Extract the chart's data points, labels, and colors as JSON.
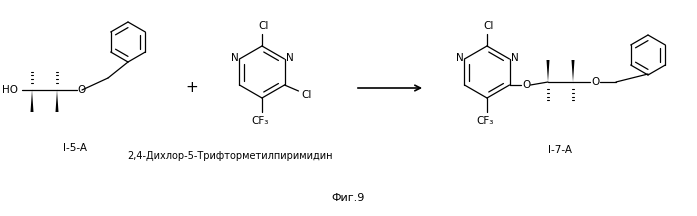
{
  "figsize": [
    6.97,
    2.16
  ],
  "dpi": 100,
  "background_color": "#ffffff",
  "line_color": "#000000",
  "label_i5a": "I-5-A",
  "label_i7a": "I-7-A",
  "label_plus": "+",
  "label_compound": "2,4-Дихлор-5-Трифторметилпиримидин",
  "label_fig": "Фиг.9",
  "font_size_atoms": 7.5,
  "font_size_label": 7.5,
  "font_size_compound": 7.0,
  "font_size_fig": 8.0
}
